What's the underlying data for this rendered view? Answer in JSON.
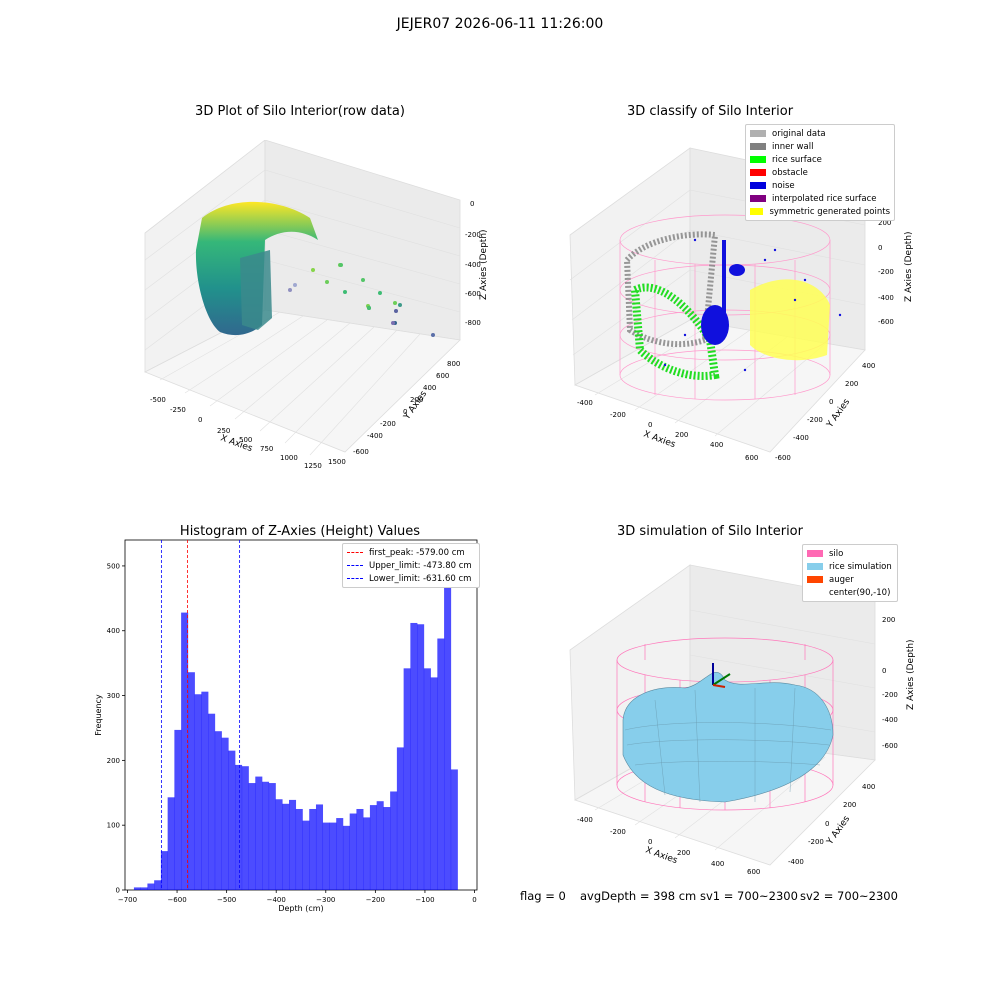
{
  "suptitle": "JEJER07 2026-06-11 11:26:00",
  "panels": {
    "raw": {
      "title": "3D Plot of Silo Interior(row data)",
      "xlabel": "X Axies",
      "ylabel": "Y Axies",
      "zlabel": "Z Axies (Depth)",
      "xticks": [
        "-500",
        "-250",
        "0",
        "250",
        "500",
        "750",
        "1000",
        "1250",
        "1500"
      ],
      "yticks": [
        "800",
        "600",
        "400",
        "200",
        "0",
        "-200",
        "-400",
        "-600"
      ],
      "zticks": [
        "0",
        "-200",
        "-400",
        "-600",
        "-800"
      ]
    },
    "classify": {
      "title": "3D classify of Silo Interior",
      "xlabel": "X Axies",
      "ylabel": "Y Axies",
      "zlabel": "Z Axies (Depth)",
      "xticks": [
        "-400",
        "-200",
        "0",
        "200",
        "400",
        "600"
      ],
      "yticks": [
        "400",
        "200",
        "0",
        "-200",
        "-400",
        "-600"
      ],
      "zticks": [
        "200",
        "0",
        "-200",
        "-400",
        "-600"
      ],
      "legend": [
        {
          "label": "original data",
          "color": "#b0b0b0"
        },
        {
          "label": "inner wall",
          "color": "#808080"
        },
        {
          "label": "rice surface",
          "color": "#00ff00"
        },
        {
          "label": "obstacle",
          "color": "#ff0000"
        },
        {
          "label": "noise",
          "color": "#0000dd"
        },
        {
          "label": "interpolated rice surface",
          "color": "#800080"
        },
        {
          "label": "symmetric generated points",
          "color": "#ffff00"
        }
      ]
    },
    "sim": {
      "title": "3D simulation of Silo Interior",
      "xlabel": "X Axies",
      "ylabel": "Y Axies",
      "zlabel": "Z Axies (Depth)",
      "xticks": [
        "-400",
        "-200",
        "0",
        "200",
        "400",
        "600"
      ],
      "yticks": [
        "400",
        "200",
        "0",
        "-200",
        "-400"
      ],
      "zticks": [
        "200",
        "0",
        "-200",
        "-400",
        "-600"
      ],
      "legend": [
        {
          "label": "silo",
          "color": "#ff69b4"
        },
        {
          "label": "rice simulation",
          "color": "#87ceeb"
        },
        {
          "label": "auger",
          "color": "#ff4500"
        },
        {
          "label": "center(90,-10)",
          "color": ""
        }
      ]
    }
  },
  "footer": {
    "flag": "flag = 0",
    "avg": "avgDepth = 398 cm",
    "sv1": "sv1 = 700~2300",
    "sv2": "sv2 = 700~2300"
  },
  "chart_data": {
    "type": "bar",
    "title": "Histogram of Z-Axies (Height) Values",
    "xlabel": "Depth (cm)",
    "ylabel": "Frequency",
    "xlim": [
      -705,
      5
    ],
    "ylim": [
      0,
      540
    ],
    "xticks": [
      -700,
      -600,
      -500,
      -400,
      -300,
      -200,
      -100,
      0
    ],
    "yticks": [
      0,
      100,
      200,
      300,
      400,
      500
    ],
    "bar_color": "#0000ff",
    "bin_width": 13.6,
    "bin_start": -687,
    "values": [
      4,
      4,
      10,
      15,
      60,
      143,
      247,
      428,
      336,
      302,
      306,
      272,
      245,
      235,
      215,
      193,
      191,
      165,
      175,
      167,
      165,
      140,
      133,
      139,
      125,
      107,
      125,
      132,
      104,
      104,
      111,
      99,
      118,
      125,
      112,
      131,
      137,
      128,
      152,
      220,
      342,
      412,
      410,
      342,
      328,
      388,
      512,
      186
    ],
    "vlines": [
      {
        "x": -579.0,
        "color": "#ff0000",
        "label": "first_peak: -579.00 cm"
      },
      {
        "x": -473.8,
        "color": "#0000ff",
        "label": "Upper_limit: -473.80 cm"
      },
      {
        "x": -631.6,
        "color": "#0000ff",
        "label": "Lower_limit: -631.60 cm"
      }
    ],
    "legend_position": "top-right"
  }
}
